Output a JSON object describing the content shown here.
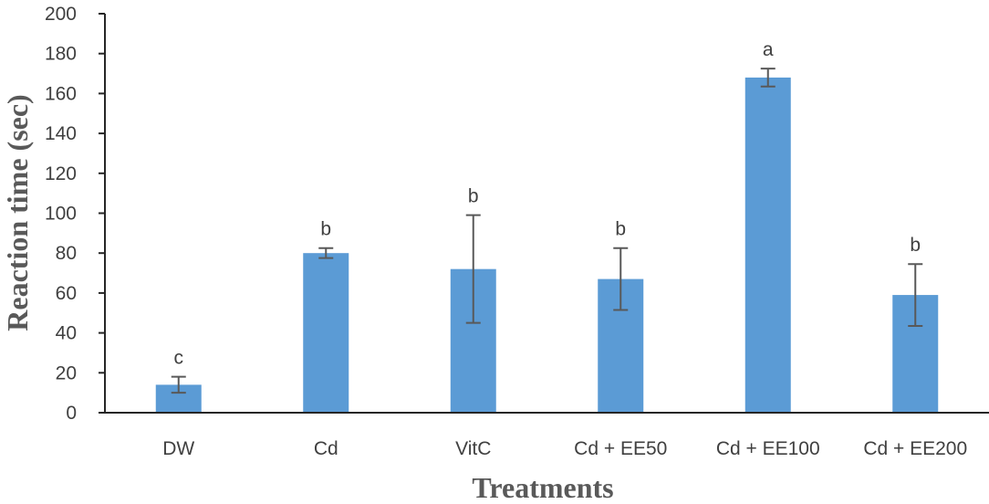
{
  "chart_data": {
    "type": "bar",
    "title": "",
    "xlabel": "Treatments",
    "ylabel": "Reaction time (sec)",
    "ylim": [
      0,
      200
    ],
    "yticks": [
      0,
      20,
      40,
      60,
      80,
      100,
      120,
      140,
      160,
      180,
      200
    ],
    "ytick_labels": [
      "0",
      "20",
      "40",
      "60",
      "80",
      "100",
      "120",
      "140",
      "160",
      "180",
      "200"
    ],
    "grid": false,
    "categories": [
      "DW",
      "Cd",
      "VitC",
      "Cd + EE50",
      "Cd + EE100",
      "Cd + EE200"
    ],
    "values": [
      14,
      80,
      72,
      67,
      168,
      59
    ],
    "error": [
      4,
      2.5,
      27,
      15.5,
      4.5,
      15.5
    ],
    "significance": [
      "c",
      "b",
      "b",
      "b",
      "a",
      "b"
    ],
    "bar_color": "#5B9BD5",
    "error_color": "#595959",
    "axis_color": "#262626"
  }
}
